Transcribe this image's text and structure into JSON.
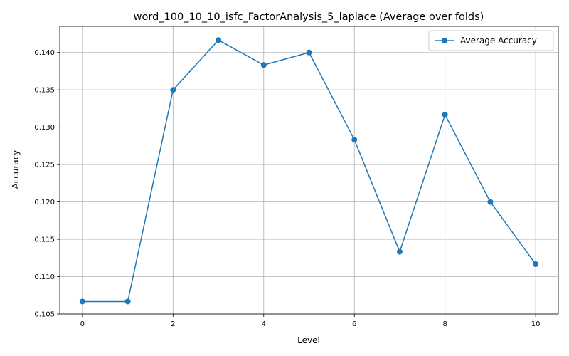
{
  "chart_data": {
    "type": "line",
    "title": "word_100_10_10_isfc_FactorAnalysis_5_laplace (Average over folds)",
    "xlabel": "Level",
    "ylabel": "Accuracy",
    "xlim": [
      -0.5,
      10.5
    ],
    "ylim": [
      0.105,
      0.1435
    ],
    "xticks": [
      0,
      2,
      4,
      6,
      8,
      10
    ],
    "xtick_labels": [
      "0",
      "2",
      "4",
      "6",
      "8",
      "10"
    ],
    "yticks": [
      0.105,
      0.11,
      0.115,
      0.12,
      0.125,
      0.13,
      0.135,
      0.14
    ],
    "ytick_labels": [
      "0.105",
      "0.110",
      "0.115",
      "0.120",
      "0.125",
      "0.130",
      "0.135",
      "0.140"
    ],
    "grid": true,
    "legend_position": "top-right",
    "series": [
      {
        "name": "Average Accuracy",
        "color": "#1f77b4",
        "marker": "circle",
        "x": [
          0,
          1,
          2,
          3,
          4,
          5,
          6,
          7,
          8,
          9,
          10
        ],
        "values": [
          0.10667,
          0.10667,
          0.135,
          0.14167,
          0.13833,
          0.14,
          0.12833,
          0.11333,
          0.13167,
          0.12,
          0.11167
        ]
      }
    ]
  }
}
